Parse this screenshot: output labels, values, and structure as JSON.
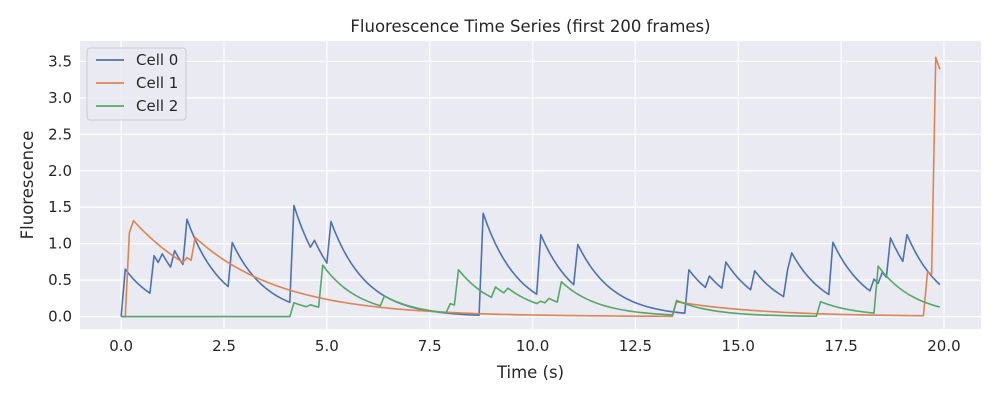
{
  "chart_data": {
    "type": "line",
    "title": "Fluorescence Time Series (first 200 frames)",
    "xlabel": "Time (s)",
    "ylabel": "Fluorescence",
    "xlim": [
      -1.0,
      20.9
    ],
    "ylim": [
      -0.17,
      3.78
    ],
    "xticks": [
      0.0,
      2.5,
      5.0,
      7.5,
      10.0,
      12.5,
      15.0,
      17.5,
      20.0
    ],
    "xtick_labels": [
      "0.0",
      "2.5",
      "5.0",
      "7.5",
      "10.0",
      "12.5",
      "15.0",
      "17.5",
      "20.0"
    ],
    "yticks": [
      0.0,
      0.5,
      1.0,
      1.5,
      2.0,
      2.5,
      3.0,
      3.5
    ],
    "ytick_labels": [
      "0.0",
      "0.5",
      "1.0",
      "1.5",
      "2.0",
      "2.5",
      "3.0",
      "3.5"
    ],
    "grid": true,
    "legend_position": "top-left",
    "background": "#eaeaf2",
    "series": [
      {
        "name": "Cell 0",
        "color": "#4c72b0",
        "events": [
          [
            0.1,
            0.65
          ],
          [
            0.8,
            0.55
          ],
          [
            1.0,
            0.2
          ],
          [
            1.3,
            0.3
          ],
          [
            1.6,
            0.7
          ],
          [
            2.7,
            0.65
          ],
          [
            4.2,
            1.35
          ],
          [
            4.7,
            0.2
          ],
          [
            5.1,
            0.65
          ],
          [
            8.8,
            1.4
          ],
          [
            10.2,
            0.85
          ],
          [
            11.1,
            0.6
          ],
          [
            13.8,
            0.6
          ],
          [
            14.3,
            0.2
          ],
          [
            14.7,
            0.4
          ],
          [
            15.4,
            0.3
          ],
          [
            16.2,
            0.4
          ],
          [
            16.3,
            0.3
          ],
          [
            17.3,
            0.75
          ],
          [
            18.3,
            0.2
          ],
          [
            18.5,
            0.2
          ],
          [
            18.7,
            0.6
          ],
          [
            19.1,
            0.45
          ]
        ],
        "tau": 0.85
      },
      {
        "name": "Cell 1",
        "color": "#dd8452",
        "events": [
          [
            0.2,
            1.15
          ],
          [
            0.3,
            0.22
          ],
          [
            1.6,
            0.1
          ],
          [
            1.8,
            0.35
          ],
          [
            13.5,
            0.2
          ],
          [
            19.6,
            0.6
          ],
          [
            19.8,
            3.0
          ]
        ],
        "tau": 2.1
      },
      {
        "name": "Cell 2",
        "color": "#55a868",
        "events": [
          [
            4.2,
            0.19
          ],
          [
            4.6,
            0.04
          ],
          [
            4.9,
            0.59
          ],
          [
            6.4,
            0.15
          ],
          [
            8.0,
            0.13
          ],
          [
            8.2,
            0.5
          ],
          [
            9.1,
            0.17
          ],
          [
            9.4,
            0.1
          ],
          [
            10.2,
            0.05
          ],
          [
            10.4,
            0.08
          ],
          [
            10.7,
            0.3
          ],
          [
            13.5,
            0.2
          ],
          [
            17.0,
            0.2
          ],
          [
            18.4,
            0.65
          ]
        ],
        "tau": 0.9
      }
    ]
  }
}
